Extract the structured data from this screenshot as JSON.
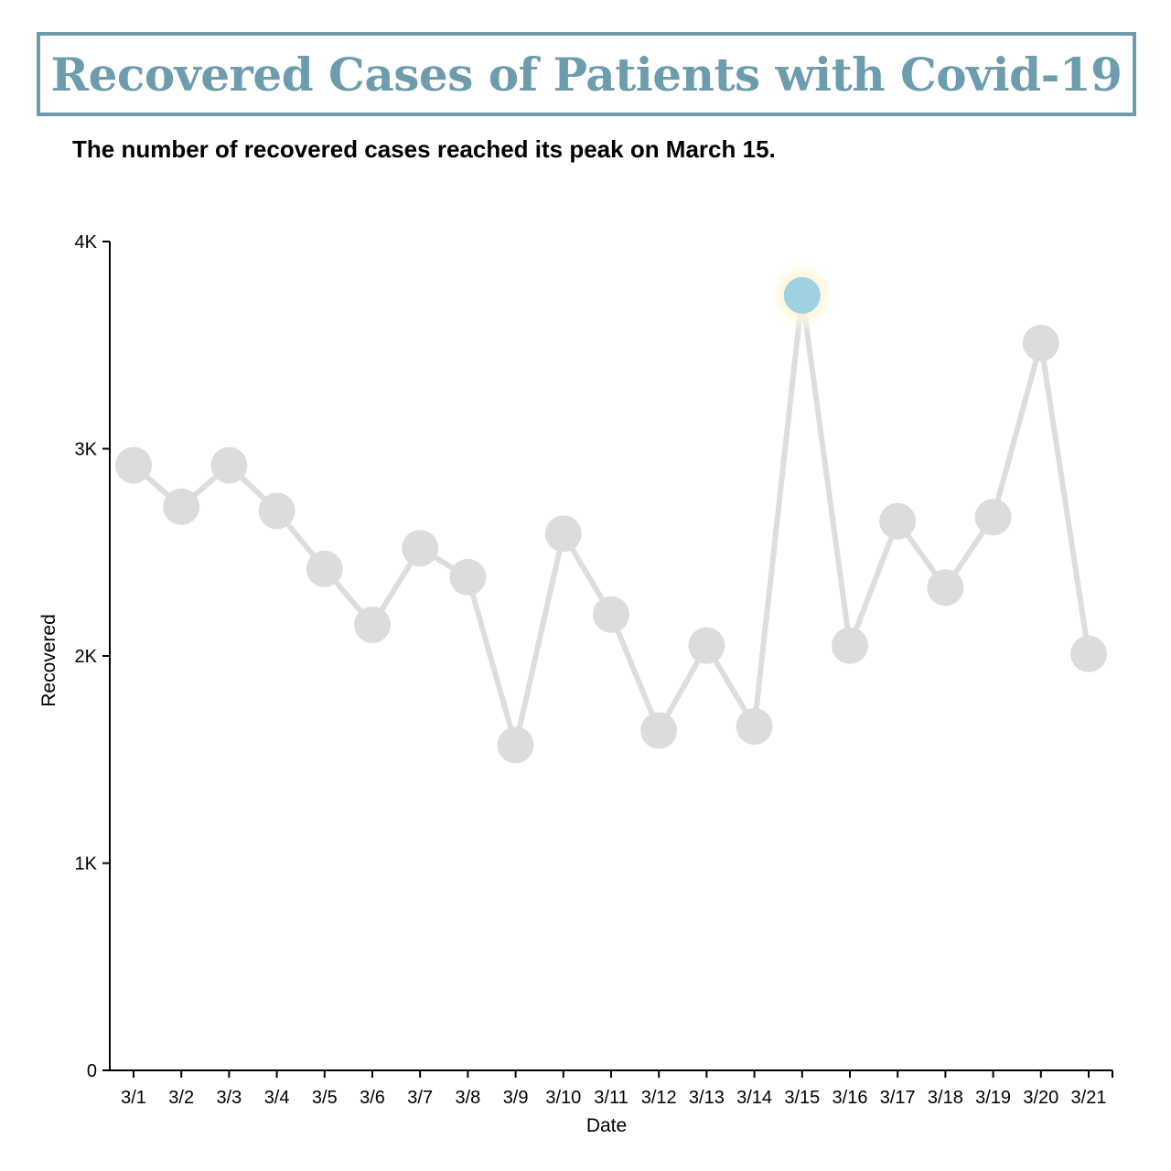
{
  "title": "Recovered Cases of Patients with Covid-19",
  "subtitle": "The number of recovered cases reached its peak on March 15.",
  "colors": {
    "title": "#6c9cad",
    "line": "#dddddd",
    "point": "#dcdcdc",
    "highlight": "#9fd1e2",
    "glow": "#fff6d0"
  },
  "chart_data": {
    "type": "line",
    "xlabel": "Date",
    "ylabel": "Recovered",
    "ylim": [
      0,
      4000
    ],
    "y_ticks": [
      0,
      1000,
      2000,
      3000,
      4000
    ],
    "y_tick_labels": [
      "0",
      "1K",
      "2K",
      "3K",
      "4K"
    ],
    "grid": false,
    "highlight": "3/15",
    "categories": [
      "3/1",
      "3/2",
      "3/3",
      "3/4",
      "3/5",
      "3/6",
      "3/7",
      "3/8",
      "3/9",
      "3/10",
      "3/11",
      "3/12",
      "3/13",
      "3/14",
      "3/15",
      "3/16",
      "3/17",
      "3/18",
      "3/19",
      "3/20",
      "3/21"
    ],
    "values": [
      2920,
      2720,
      2920,
      2700,
      2420,
      2150,
      2520,
      2380,
      1570,
      2590,
      2200,
      1640,
      2050,
      1660,
      3740,
      2050,
      2650,
      2330,
      2670,
      3510,
      2010
    ]
  }
}
